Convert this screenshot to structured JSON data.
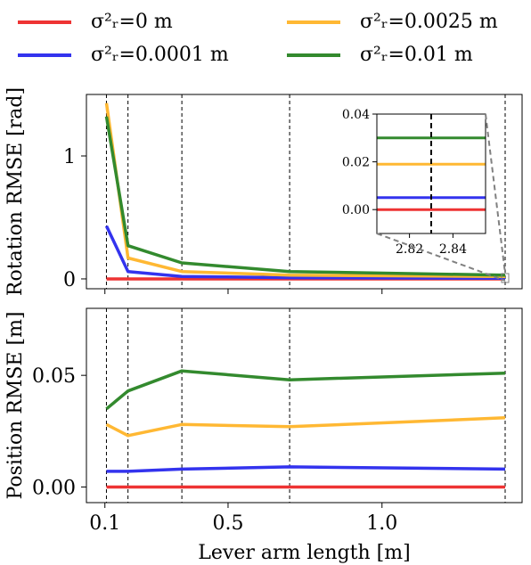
{
  "legend": [
    {
      "name": "σ²ᵣ=0 m",
      "color": "#ee3333"
    },
    {
      "name": "σ²ᵣ=0.0025 m",
      "color": "#ffb833"
    },
    {
      "name": "σ²ᵣ=0.0001 m",
      "color": "#3333ee"
    },
    {
      "name": "σ²ᵣ=0.01 m",
      "color": "#338a2e"
    }
  ],
  "chart_data": [
    {
      "type": "line",
      "title": "",
      "xlabel": "",
      "ylabel": "Rotation RMSE [rad]",
      "xlim": [
        0.04,
        1.455
      ],
      "ylim": [
        -0.08,
        1.5
      ],
      "yticks": [
        0,
        1
      ],
      "ytick_labels": [
        "0",
        "1"
      ],
      "xticks": [
        0.1,
        0.5,
        1.0
      ],
      "vlines": [
        0.105,
        0.175,
        0.35,
        0.7,
        1.4
      ],
      "grid": false,
      "series": [
        {
          "name": "σ²ᵣ=0 m",
          "color": "#ee3333",
          "x": [
            0.105,
            0.175,
            0.35,
            0.7,
            1.4
          ],
          "y": [
            0.0,
            0.0,
            0.0,
            0.0,
            0.0
          ]
        },
        {
          "name": "σ²ᵣ=0.0001 m",
          "color": "#3333ee",
          "x": [
            0.105,
            0.175,
            0.35,
            0.7,
            1.4
          ],
          "y": [
            0.43,
            0.06,
            0.02,
            0.01,
            0.005
          ]
        },
        {
          "name": "σ²ᵣ=0.0025 m",
          "color": "#ffb833",
          "x": [
            0.105,
            0.175,
            0.35,
            0.7,
            1.4
          ],
          "y": [
            1.43,
            0.17,
            0.06,
            0.03,
            0.02
          ]
        },
        {
          "name": "σ²ᵣ=0.01 m",
          "color": "#338a2e",
          "x": [
            0.105,
            0.175,
            0.35,
            0.7,
            1.4
          ],
          "y": [
            1.32,
            0.27,
            0.13,
            0.06,
            0.03
          ]
        }
      ],
      "inset": {
        "xlim": [
          2.805,
          2.855
        ],
        "ylim": [
          -0.01,
          0.04
        ],
        "xticks": [
          2.82,
          2.84
        ],
        "xtick_labels": [
          "2.82",
          "2.84"
        ],
        "yticks": [
          0.0,
          0.02,
          0.04
        ],
        "ytick_labels": [
          "0.00",
          "0.02",
          "0.04"
        ],
        "vline": 2.83,
        "values": [
          {
            "name": "σ²ᵣ=0 m",
            "y": 0.0
          },
          {
            "name": "σ²ᵣ=0.0001 m",
            "y": 0.005
          },
          {
            "name": "σ²ᵣ=0.0025 m",
            "y": 0.019
          },
          {
            "name": "σ²ᵣ=0.01 m",
            "y": 0.03
          }
        ]
      }
    },
    {
      "type": "line",
      "title": "",
      "xlabel": "Lever arm length [m]",
      "ylabel": "Position RMSE [m]",
      "xlim": [
        0.04,
        1.455
      ],
      "ylim": [
        -0.007,
        0.08
      ],
      "yticks": [
        0.0,
        0.05
      ],
      "ytick_labels": [
        "0.00",
        "0.05"
      ],
      "xticks": [
        0.1,
        0.5,
        1.0
      ],
      "xtick_labels": [
        "0.1",
        "0.5",
        "1.0"
      ],
      "vlines": [
        0.105,
        0.175,
        0.35,
        0.7,
        1.4
      ],
      "grid": false,
      "series": [
        {
          "name": "σ²ᵣ=0 m",
          "color": "#ee3333",
          "x": [
            0.105,
            0.175,
            0.35,
            0.7,
            1.4
          ],
          "y": [
            0.0,
            0.0,
            0.0,
            0.0,
            0.0
          ]
        },
        {
          "name": "σ²ᵣ=0.0001 m",
          "color": "#3333ee",
          "x": [
            0.105,
            0.175,
            0.35,
            0.7,
            1.4
          ],
          "y": [
            0.007,
            0.007,
            0.008,
            0.009,
            0.008
          ]
        },
        {
          "name": "σ²ᵣ=0.0025 m",
          "color": "#ffb833",
          "x": [
            0.105,
            0.175,
            0.35,
            0.7,
            1.4
          ],
          "y": [
            0.028,
            0.023,
            0.028,
            0.027,
            0.031
          ]
        },
        {
          "name": "σ²ᵣ=0.01 m",
          "color": "#338a2e",
          "x": [
            0.105,
            0.175,
            0.35,
            0.7,
            1.4
          ],
          "y": [
            0.035,
            0.043,
            0.052,
            0.048,
            0.051
          ]
        }
      ]
    }
  ]
}
